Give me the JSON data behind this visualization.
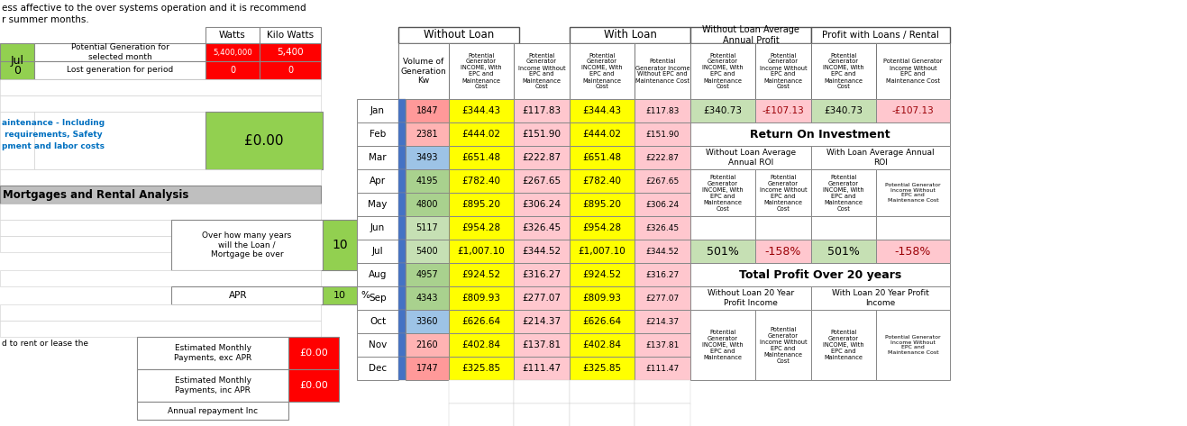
{
  "months": [
    "Jan",
    "Feb",
    "Mar",
    "Apr",
    "May",
    "Jun",
    "Jul",
    "Aug",
    "Sep",
    "Oct",
    "Nov",
    "Dec"
  ],
  "kw_values": [
    1847,
    2381,
    3493,
    4195,
    4800,
    5117,
    5400,
    4957,
    4343,
    3360,
    2160,
    1747
  ],
  "income_with_epc": [
    "£344.43",
    "£444.02",
    "£651.48",
    "£782.40",
    "£895.20",
    "£954.28",
    "£1,007.10",
    "£924.52",
    "£809.93",
    "£626.64",
    "£402.84",
    "£325.85"
  ],
  "income_without_epc": [
    "£117.83",
    "£151.90",
    "£222.87",
    "£267.65",
    "£306.24",
    "£326.45",
    "£344.52",
    "£316.27",
    "£277.07",
    "£214.37",
    "£137.81",
    "£111.47"
  ],
  "bg_white": "#ffffff",
  "bg_green": "#92d050",
  "bg_red": "#ff0000",
  "bg_yellow": "#ffff00",
  "bg_salmon": "#ffc7ce",
  "bg_light_green": "#c6e0b4",
  "bg_gray": "#bfbfbf",
  "bg_orange_red": "#ff7070",
  "text_dark_red": "#9c0006",
  "text_green": "#375623",
  "generation_watts": "5,400,000",
  "generation_kw": "5,400",
  "lost_watts": "0",
  "lost_kw": "0",
  "maintenance_val": "£0.00",
  "loan_years": "10",
  "apr_val": "10",
  "monthly_exc": "£0.00",
  "monthly_inc": "£0.00",
  "roi_501": "501%",
  "roi_neg158": "-158%",
  "jan_avg_profit_with": "£340.73",
  "jan_avg_profit_without": "-£107.13"
}
